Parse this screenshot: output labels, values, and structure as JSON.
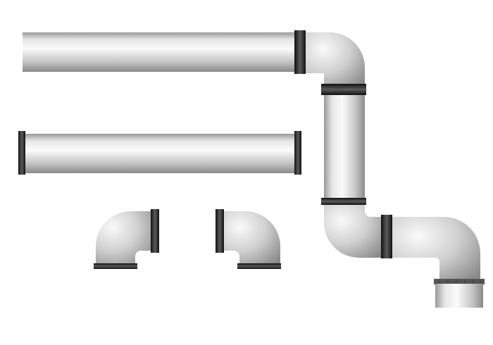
{
  "scene": {
    "background": "#ffffff",
    "pipe_light": "#f2f2f2",
    "pipe_mid": "#c8c8c8",
    "pipe_dark": "#8c8c8c",
    "flange": "#1a1a1a",
    "flange_highlight": "#5a5a5a",
    "parts": [
      {
        "kind": "straight-pipe"
      },
      {
        "kind": "straight-pipe"
      },
      {
        "kind": "elbow-fitting"
      },
      {
        "kind": "elbow-fitting"
      },
      {
        "kind": "assembled-pipeline"
      }
    ]
  }
}
